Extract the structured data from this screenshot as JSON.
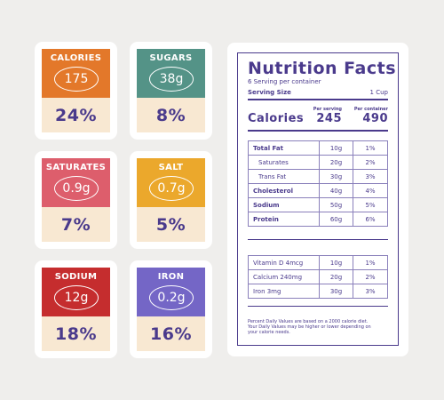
{
  "colors": {
    "accent": "#4a3a8c",
    "card_bottom": "#f8e8d2"
  },
  "cards": [
    {
      "name": "CALORIES",
      "amount": "175",
      "percent": "24%",
      "color": "#e3782a"
    },
    {
      "name": "SUGARS",
      "amount": "38g",
      "percent": "8%",
      "color": "#549387"
    },
    {
      "name": "SATURATES",
      "amount": "0.9g",
      "percent": "7%",
      "color": "#dd5e6c"
    },
    {
      "name": "SALT",
      "amount": "0.7g",
      "percent": "5%",
      "color": "#eba82c"
    },
    {
      "name": "SODIUM",
      "amount": "12g",
      "percent": "18%",
      "color": "#c52d2e"
    },
    {
      "name": "IRON",
      "amount": "0.2g",
      "percent": "16%",
      "color": "#7466c6"
    }
  ],
  "facts": {
    "title": "Nutrition Facts",
    "servings_per_container": "6 Serving per container",
    "serving_size_label": "Serving Size",
    "serving_size_value": "1 Cup",
    "per_serving_label": "Per serving",
    "per_container_label": "Per container",
    "calories_label": "Calories",
    "calories_per_serving": "245",
    "calories_per_container": "490",
    "rows_main": [
      {
        "name": "Total Fat",
        "amount": "10g",
        "dv": "1%",
        "bold": true
      },
      {
        "name": "Saturates",
        "amount": "20g",
        "dv": "2%",
        "bold": false
      },
      {
        "name": "Trans Fat",
        "amount": "30g",
        "dv": "3%",
        "bold": false
      },
      {
        "name": "Cholesterol",
        "amount": "40g",
        "dv": "4%",
        "bold": true
      },
      {
        "name": "Sodium",
        "amount": "50g",
        "dv": "5%",
        "bold": true
      },
      {
        "name": "Protein",
        "amount": "60g",
        "dv": "6%",
        "bold": true
      }
    ],
    "rows_vitamins": [
      {
        "name": "Vitamin D 4mcg",
        "amount": "10g",
        "dv": "1%"
      },
      {
        "name": "Calcium  240mg",
        "amount": "20g",
        "dv": "2%"
      },
      {
        "name": "Iron 3mg",
        "amount": "30g",
        "dv": "3%"
      }
    ],
    "footnote_line1": "Percent Daily Values are based on a 2000 calorie diet.",
    "footnote_line2": "Your Daily Values may be higher or lower depending on",
    "footnote_line3": "your calorie needs."
  }
}
